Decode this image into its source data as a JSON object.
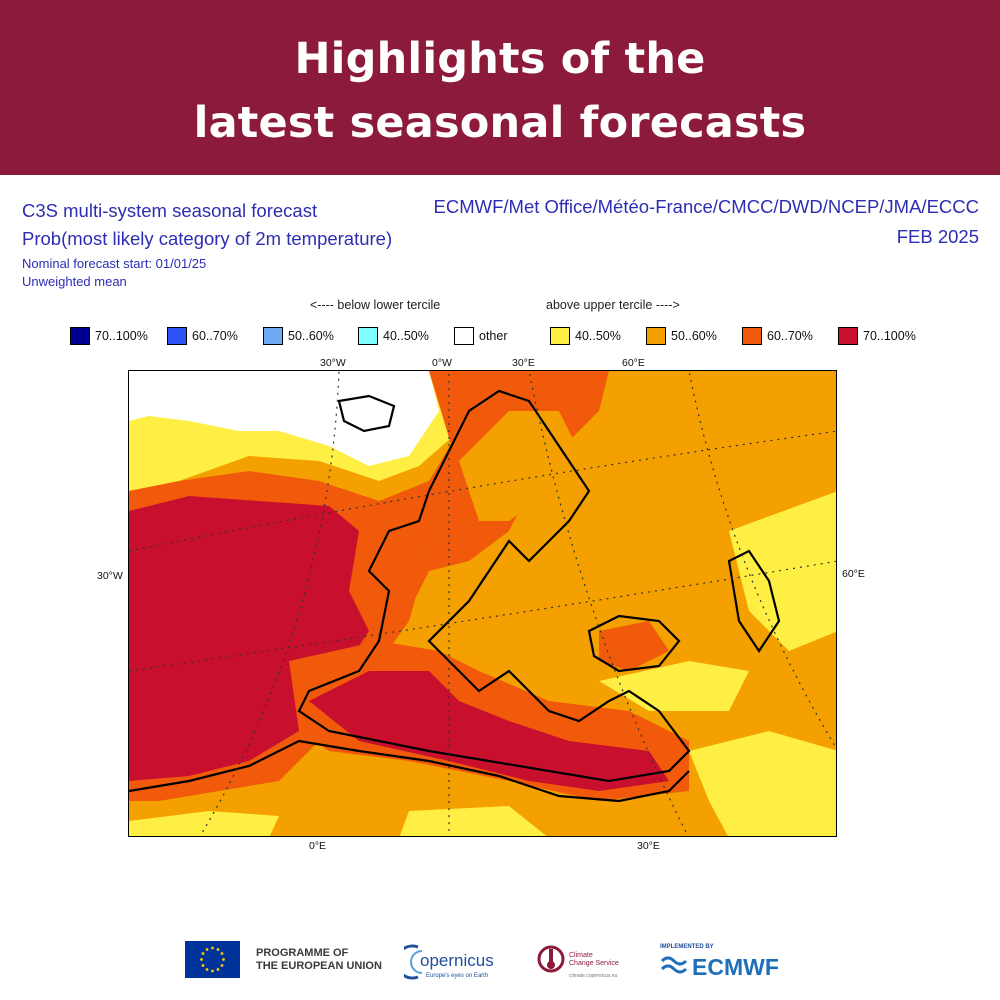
{
  "banner": {
    "line1": "Highlights of the",
    "line2": "latest seasonal forecasts",
    "background_color": "#8c1b3b"
  },
  "header": {
    "title": "C3S multi-system seasonal forecast",
    "subtitle": "Prob(most likely category of 2m temperature)",
    "start": "Nominal forecast start: 01/01/25",
    "mean": "Unweighted mean",
    "systems": "ECMWF/Met Office/Météo-France/CMCC/DWD/NCEP/JMA/ECCC",
    "period": "FEB 2025"
  },
  "legend": {
    "below_label": "<---- below lower tercile",
    "above_label": "above upper tercile ---->",
    "items": [
      {
        "label": "70..100%",
        "color": "#000090"
      },
      {
        "label": "60..70%",
        "color": "#2a52f5"
      },
      {
        "label": "50..60%",
        "color": "#6fa8f5"
      },
      {
        "label": "40..50%",
        "color": "#7fffff"
      },
      {
        "label": "other",
        "color": "#ffffff"
      },
      {
        "label": "40..50%",
        "color": "#ffee44"
      },
      {
        "label": "50..60%",
        "color": "#f4a000"
      },
      {
        "label": "60..70%",
        "color": "#f05a0a"
      },
      {
        "label": "70..100%",
        "color": "#c8102e"
      }
    ]
  },
  "map": {
    "coords": {
      "top_30w": "30°W",
      "top_0w": "0°W",
      "top_30e": "30°E",
      "top_60e": "60°E",
      "left_30w": "30°W",
      "right_60e": "60°E",
      "bottom_0e": "0°E",
      "bottom_30e": "30°E"
    },
    "colors": {
      "c70": "#c8102e",
      "c60": "#f05a0a",
      "c50": "#f4a000",
      "c40": "#ffee44",
      "other": "#ffffff"
    }
  },
  "footer": {
    "eu_line1": "PROGRAMME OF",
    "eu_line2": "THE EUROPEAN UNION",
    "copernicus": "opernicus",
    "copernicus_tagline": "Europe's eyes on Earth",
    "c3s_line1": "Climate",
    "c3s_line2": "Change Service",
    "c3s_url": "climate.copernicus.eu",
    "ecmwf_implemented": "IMPLEMENTED BY",
    "ecmwf": "ECMWF"
  }
}
